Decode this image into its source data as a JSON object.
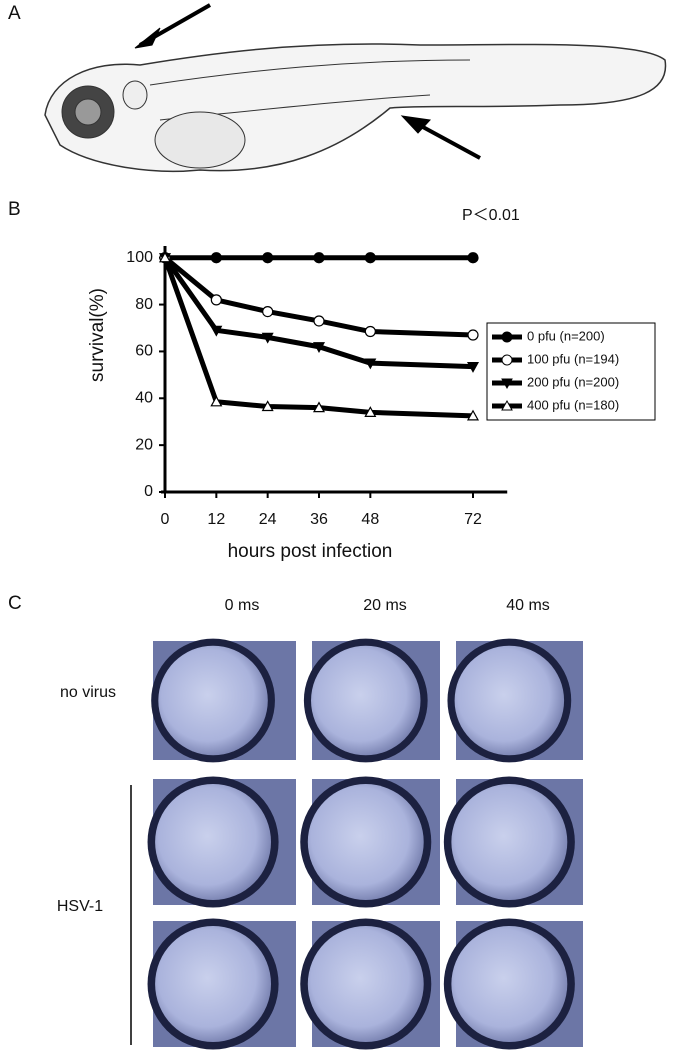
{
  "panels": {
    "a": "A",
    "b": "B",
    "c": "C"
  },
  "chart_data": {
    "type": "line",
    "annotation": "P＜0.01",
    "x_label": "hours post infection",
    "y_label": "survival(%)",
    "x": [
      0,
      12,
      24,
      36,
      48,
      72
    ],
    "series": [
      {
        "name": "0 pfu (n=200)",
        "color": "#000000",
        "marker": "filled-circle",
        "values": [
          100,
          100,
          100,
          100,
          100,
          100
        ]
      },
      {
        "name": "100 pfu (n=194)",
        "color": "#000000",
        "marker": "open-circle",
        "values": [
          100,
          82,
          77,
          73,
          68.5,
          67
        ]
      },
      {
        "name": "200 pfu (n=200)",
        "color": "#000000",
        "marker": "filled-triangle-down",
        "values": [
          100,
          69,
          66,
          62,
          55,
          53.5
        ]
      },
      {
        "name": "400 pfu (n=180)",
        "color": "#000000",
        "marker": "open-triangle-up",
        "values": [
          100,
          38.5,
          36.5,
          36,
          34,
          32.5
        ]
      }
    ],
    "xlim": [
      0,
      80
    ],
    "ylim": [
      0,
      105
    ],
    "xticks": [
      0,
      12,
      24,
      36,
      48,
      72
    ],
    "yticks": [
      0,
      20,
      40,
      60,
      80,
      100
    ],
    "legend": "right"
  },
  "images": {
    "columns": [
      "0 ms",
      "20 ms",
      "40 ms"
    ],
    "rows": [
      "no virus",
      "HSV-1"
    ]
  }
}
